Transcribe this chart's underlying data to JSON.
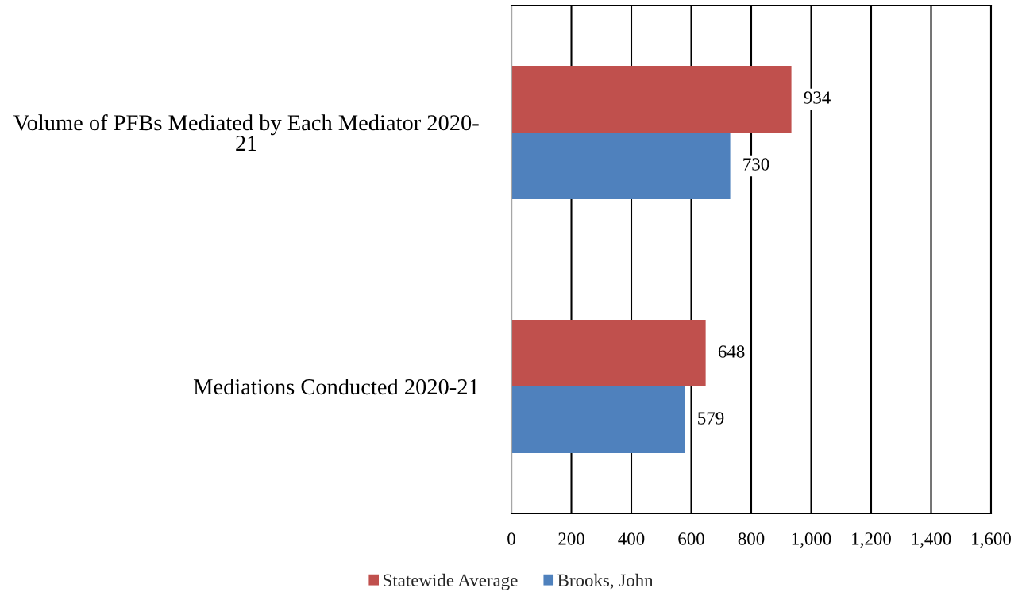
{
  "chart_data": {
    "type": "bar",
    "orientation": "horizontal",
    "categories": [
      "Volume of PFBs Mediated by Each Mediator 2020-\n21",
      "Mediations Conducted 2020-21"
    ],
    "series": [
      {
        "name": "Statewide Average",
        "color": "#c0504d",
        "values": [
          934,
          648
        ]
      },
      {
        "name": "Brooks, John",
        "color": "#4f81bd",
        "values": [
          730,
          579
        ]
      }
    ],
    "xlim": [
      0,
      1600
    ],
    "xticks": [
      0,
      200,
      400,
      600,
      800,
      {
        "value": 1000,
        "label": "1,000"
      },
      {
        "value": 1200,
        "label": "1,200"
      },
      {
        "value": 1400,
        "label": "1,400"
      },
      {
        "value": 1600,
        "label": "1,600"
      }
    ],
    "grid": "x",
    "legend": "bottom",
    "data_labels": true
  }
}
